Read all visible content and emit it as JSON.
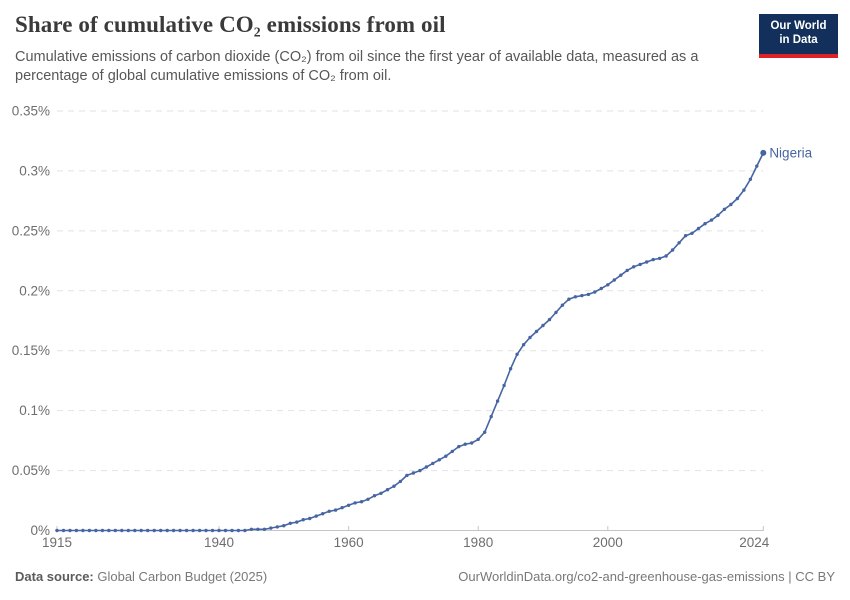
{
  "header": {
    "title": "Share of cumulative CO₂ emissions from oil",
    "subtitle": "Cumulative emissions of carbon dioxide (CO₂) from oil since the first year of available data, measured as a percentage of global cumulative emissions of CO₂ from oil.",
    "logo": {
      "line1": "Our World",
      "line2": "in Data",
      "bg_color": "#12305b",
      "accent_color": "#de2227"
    }
  },
  "chart_data": {
    "type": "line",
    "title": "Share of cumulative CO₂ emissions from oil",
    "xlabel": "",
    "ylabel": "",
    "x_start": 1915,
    "x_end": 2024,
    "xlim": [
      1915,
      2024
    ],
    "ylim": [
      0,
      0.35
    ],
    "grid": "dashed-horizontal",
    "legend_position": "end-of-line-label",
    "x_ticks": [
      1915,
      1940,
      1960,
      1980,
      2000,
      2024
    ],
    "y_ticks": [
      0,
      0.05,
      0.1,
      0.15,
      0.2,
      0.25,
      0.3,
      0.35
    ],
    "y_tick_labels": [
      "0%",
      "0.05%",
      "0.1%",
      "0.15%",
      "0.2%",
      "0.25%",
      "0.3%",
      "0.35%"
    ],
    "series": [
      {
        "name": "Nigeria",
        "color": "#4665a2",
        "values_unit": "percent",
        "values": [
          0,
          0,
          0,
          0,
          0,
          0,
          0,
          0,
          0,
          0,
          0,
          0,
          0,
          0,
          0,
          0,
          0,
          0,
          0,
          0,
          0,
          0,
          0,
          0,
          0,
          0,
          0,
          0,
          0,
          0,
          0.001,
          0.001,
          0.001,
          0.002,
          0.003,
          0.004,
          0.006,
          0.007,
          0.009,
          0.01,
          0.012,
          0.014,
          0.016,
          0.017,
          0.019,
          0.021,
          0.023,
          0.024,
          0.026,
          0.029,
          0.031,
          0.034,
          0.037,
          0.041,
          0.046,
          0.048,
          0.05,
          0.053,
          0.056,
          0.059,
          0.062,
          0.066,
          0.07,
          0.072,
          0.073,
          0.076,
          0.082,
          0.095,
          0.108,
          0.121,
          0.135,
          0.147,
          0.155,
          0.161,
          0.166,
          0.171,
          0.176,
          0.182,
          0.188,
          0.193,
          0.195,
          0.196,
          0.197,
          0.199,
          0.202,
          0.205,
          0.209,
          0.213,
          0.217,
          0.22,
          0.222,
          0.224,
          0.226,
          0.227,
          0.229,
          0.234,
          0.24,
          0.246,
          0.248,
          0.252,
          0.256,
          0.259,
          0.263,
          0.268,
          0.272,
          0.277,
          0.284,
          0.293,
          0.304,
          0.315
        ]
      }
    ],
    "end_label": "Nigeria",
    "colors": {
      "line": "#4665a2",
      "grid": "#e2e2e2",
      "axis": "#c4c4c4",
      "tick_text": "#6e6e6e"
    }
  },
  "footer": {
    "source_label": "Data source:",
    "source_text": " Global Carbon Budget (2025)",
    "link_text": "OurWorldinData.org/co2-and-greenhouse-gas-emissions",
    "license_sep": " | ",
    "license_text": "CC BY"
  }
}
